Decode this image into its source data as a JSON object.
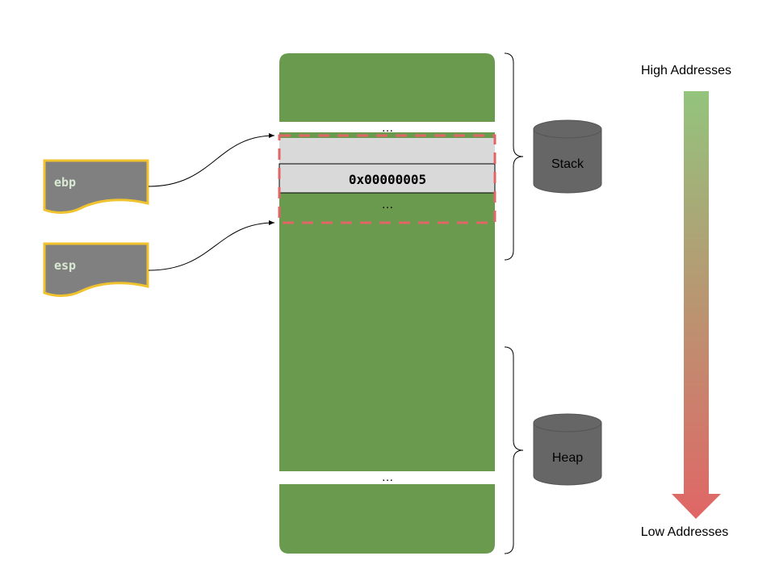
{
  "registers": {
    "ebp": {
      "label": "ebp"
    },
    "esp": {
      "label": "esp"
    }
  },
  "memory": {
    "ellipsis_top": "…",
    "ellipsis_frame": "…",
    "ellipsis_bottom": "…",
    "value_cell": "0x00000005"
  },
  "regions": {
    "stack": {
      "label": "Stack"
    },
    "heap": {
      "label": "Heap"
    }
  },
  "address_axis": {
    "high_label": "High Addresses",
    "low_label": "Low Addresses"
  },
  "colors": {
    "memory_green": "#6a9a4e",
    "cell_gray": "#d9d9d9",
    "frame_dashed_red": "#e06666",
    "register_fill": "#808080",
    "register_border": "#f0c22e",
    "register_text": "#d9ead3",
    "cylinder_fill": "#666666",
    "arrow_top": "#93c47d",
    "arrow_bottom": "#e06666"
  }
}
